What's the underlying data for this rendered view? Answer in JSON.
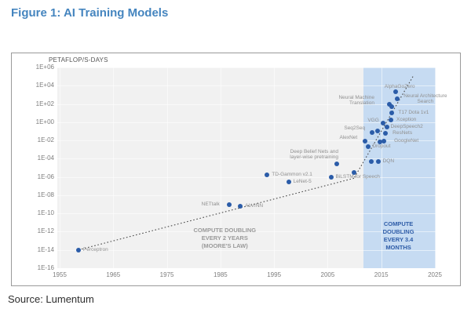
{
  "title": "Figure 1: AI Training Models",
  "source": "Source: Lumentum",
  "chart_data": {
    "type": "scatter",
    "title": "Figure 1: AI Training Models",
    "axis_label": "PETAFLOP/S-DAYS",
    "x_domain": [
      1955,
      2025
    ],
    "x_ticks": [
      1955,
      1965,
      1975,
      1985,
      1995,
      2005,
      2015,
      2025
    ],
    "y_scale": "log10",
    "y_domain_exp": [
      6,
      -16
    ],
    "y_tick_labels": [
      "1E+06",
      "1E+04",
      "1E+02",
      "1E+00",
      "1E-02",
      "1E-04",
      "1E-06",
      "1E-08",
      "1E-10",
      "1E-12",
      "1E-14",
      "1E-16"
    ],
    "grid": true,
    "highlight_band": {
      "x1": 2011.7,
      "x2": 2025
    },
    "points": [
      {
        "label": "Perceptron",
        "year": 1958.5,
        "log": -14.0,
        "side": "right",
        "gap": 6
      },
      {
        "label": "NETtalk",
        "year": 1986.6,
        "log": -9.05,
        "side": "left",
        "gap": 12
      },
      {
        "label": "ALVINN",
        "year": 1988.7,
        "log": -9.2,
        "side": "right",
        "gap": 6
      },
      {
        "label": "TD-Gammon v2.1",
        "year": 1993.7,
        "log": -5.75,
        "side": "right",
        "gap": 6
      },
      {
        "label": "LeNet-5",
        "year": 1997.7,
        "log": -6.55,
        "side": "right",
        "gap": 6
      },
      {
        "label": "BiLSTM for Speech",
        "year": 2005.6,
        "log": -6.05,
        "side": "right",
        "gap": 6
      },
      {
        "label": "Deep Belief Nets and layer-wise pretraining",
        "lines": [
          "Deep Belief Nets and",
          "layer-wise pretraining"
        ],
        "year": 2006.7,
        "log": -4.6,
        "side": "above-left"
      },
      {
        "label": "",
        "year": 2009.9,
        "log": -5.55
      },
      {
        "label": "AlexNet",
        "year": 2012.0,
        "log": -2.1,
        "side": "left",
        "gap": 10,
        "dy": -4
      },
      {
        "label": "Dropout",
        "year": 2012.6,
        "log": -2.7,
        "side": "right",
        "gap": 5
      },
      {
        "label": "",
        "year": 2013.2,
        "log": -4.3
      },
      {
        "label": "DQN",
        "year": 2014.4,
        "log": -4.3,
        "side": "right",
        "gap": 6
      },
      {
        "label": "Seq2Seq",
        "year": 2013.3,
        "log": -1.1,
        "side": "left",
        "gap": 9,
        "dy": -5
      },
      {
        "label": "",
        "year": 2014.3,
        "log": -0.95
      },
      {
        "label": "VGG",
        "year": 2015.3,
        "log": -0.1,
        "side": "left",
        "gap": 5,
        "dy": -3
      },
      {
        "label": "DeepSpeech2",
        "year": 2016.0,
        "log": -0.55,
        "side": "right",
        "gap": 5
      },
      {
        "label": "ResNets",
        "year": 2015.8,
        "log": -1.2,
        "side": "right",
        "gap": 9
      },
      {
        "label": "GoogleNet",
        "year": 2015.5,
        "log": -2.05,
        "side": "right",
        "gap": 13
      },
      {
        "label": "",
        "year": 2014.8,
        "log": -2.15
      },
      {
        "label": "Xception",
        "year": 2016.8,
        "log": 0.25,
        "side": "right",
        "gap": 7
      },
      {
        "label": "T17 Dota 1v1",
        "year": 2017.0,
        "log": 1.0,
        "side": "right",
        "gap": 8
      },
      {
        "label": "Neural Machine Translation",
        "lines": [
          "Neural Machine",
          "Translation"
        ],
        "year": 2016.5,
        "log": 1.95,
        "side": "left",
        "gap": 19,
        "dy": -5
      },
      {
        "label": "",
        "year": 2017.0,
        "log": 1.7
      },
      {
        "label": "Neural Architecture Search",
        "lines": [
          "Neural Architecture",
          "Search"
        ],
        "year": 2018.0,
        "log": 2.6,
        "side": "right",
        "gap": 8,
        "dy": 0
      },
      {
        "label": "AlphaGoZero",
        "year": 2017.7,
        "log": 3.35,
        "side": "above"
      }
    ],
    "trend_lines": [
      {
        "name": "compute-doubling-2-years",
        "x1": 1958.5,
        "y1": -14.0,
        "x2": 2010.2,
        "y2": -6.1
      },
      {
        "name": "compute-doubling-3-4-months",
        "x1": 2010.0,
        "y1": -6.05,
        "x2": 2021.0,
        "y2": 5.1
      }
    ],
    "annotations": [
      {
        "name": "moore-annotation",
        "lines": [
          "COMPUTE DOUBLING",
          "EVERY 2 YEARS",
          "(MOORE'S LAW)"
        ],
        "year": 1985.8,
        "log": -12.7,
        "color_key": "annotation_gray"
      },
      {
        "name": "modern-annotation",
        "lines": [
          "COMPUTE",
          "DOUBLING",
          "EVERY 3.4",
          "MONTHS"
        ],
        "year": 2018.2,
        "log": -12.5,
        "color_key": "annotation_blue"
      }
    ],
    "colors": {
      "title": "#4585bf",
      "dot": "#2b5ca8",
      "band": "#c6dbf2",
      "plot_bg": "#f1f1f1",
      "annotation_gray": "#9a9a9a",
      "annotation_blue": "#2f5da8",
      "trend_line": "#4a4a4a",
      "tick_text": "#7d7d7d",
      "point_label": "#909090"
    }
  }
}
